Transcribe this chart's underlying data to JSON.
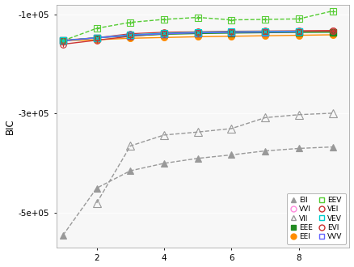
{
  "x": [
    1,
    2,
    3,
    4,
    5,
    6,
    7,
    8,
    9
  ],
  "ylabel": "BIC",
  "series": {
    "EII": {
      "values": [
        -545000,
        -450000,
        -415000,
        -400000,
        -390000,
        -383000,
        -375000,
        -370000,
        -367000
      ],
      "color": "#999999",
      "marker": "^",
      "filled": true,
      "linestyle": "--",
      "linewidth": 1.0
    },
    "VII": {
      "values": [
        null,
        -480000,
        -365000,
        -343000,
        -337000,
        -330000,
        -308000,
        -302000,
        -299000
      ],
      "color": "#999999",
      "marker": "^",
      "filled": false,
      "linestyle": "--",
      "linewidth": 1.0
    },
    "EEI": {
      "values": [
        -153000,
        -151000,
        -148000,
        -146500,
        -145000,
        -144000,
        -143000,
        -142000,
        -141000
      ],
      "color": "#FF8C00",
      "marker": "o",
      "filled": true,
      "linestyle": "-",
      "linewidth": 1.0
    },
    "VEI": {
      "values": [
        -152000,
        -147000,
        -139000,
        -136000,
        -135000,
        -134000,
        -133500,
        -133000,
        -132500
      ],
      "color": "#cc3333",
      "marker": "x_circle",
      "filled": false,
      "linestyle": "-",
      "linewidth": 1.0
    },
    "EVI": {
      "values": [
        -160000,
        -152000,
        -144000,
        -139000,
        -137000,
        -136000,
        -135000,
        -134000,
        -133500
      ],
      "color": "#cc3333",
      "marker": "plus_circle",
      "filled": false,
      "linestyle": "-",
      "linewidth": 1.0
    },
    "VVI": {
      "values": [
        -153000,
        -147000,
        -141000,
        -138000,
        -136500,
        -135500,
        -134800,
        -134200,
        null
      ],
      "color": "#ff88dd",
      "marker": "o",
      "filled": false,
      "linestyle": "-",
      "linewidth": 1.0
    },
    "EEE": {
      "values": [
        -153000,
        -147000,
        -143000,
        -140000,
        -138500,
        -137500,
        -136800,
        -136200,
        -135800
      ],
      "color": "#228B22",
      "marker": "s",
      "filled": true,
      "linestyle": "-",
      "linewidth": 1.0
    },
    "EEV": {
      "values": [
        -153000,
        -128000,
        -116000,
        -110000,
        -106000,
        -111000,
        -110000,
        -109000,
        -93000
      ],
      "color": "#55cc33",
      "marker": "plus_square",
      "filled": false,
      "linestyle": "--",
      "linewidth": 1.0
    },
    "VEV": {
      "values": [
        -153000,
        -147000,
        -141000,
        -138000,
        -136000,
        -135000,
        -134500,
        -134000,
        null
      ],
      "color": "#00cccc",
      "marker": "x_square",
      "filled": false,
      "linestyle": "-",
      "linewidth": 1.0
    },
    "VVV": {
      "values": [
        -153000,
        -147000,
        -142000,
        -139000,
        -137000,
        -136000,
        -135500,
        -135000,
        null
      ],
      "color": "#6666ff",
      "marker": "s",
      "filled": false,
      "linestyle": "-",
      "linewidth": 1.0
    }
  },
  "ylim": [
    -570000,
    -80000
  ],
  "xlim": [
    0.8,
    9.5
  ],
  "yticks": [
    -500000,
    -300000,
    -100000
  ],
  "ytick_labels": [
    "-5e+05",
    "-3e+05",
    "-1e+05"
  ],
  "xticks": [
    2,
    4,
    6,
    8
  ],
  "plot_bgcolor": "#f7f7f7",
  "series_order": [
    "EII",
    "VII",
    "EEI",
    "VEI",
    "EVI",
    "VVI",
    "EEE",
    "EEV",
    "VEV",
    "VVV"
  ],
  "legend_order": [
    "EII",
    "VVI",
    "VII",
    "EEE",
    "EEI",
    "EEV",
    "VEI",
    "VEV",
    "EVI",
    "VVV"
  ]
}
